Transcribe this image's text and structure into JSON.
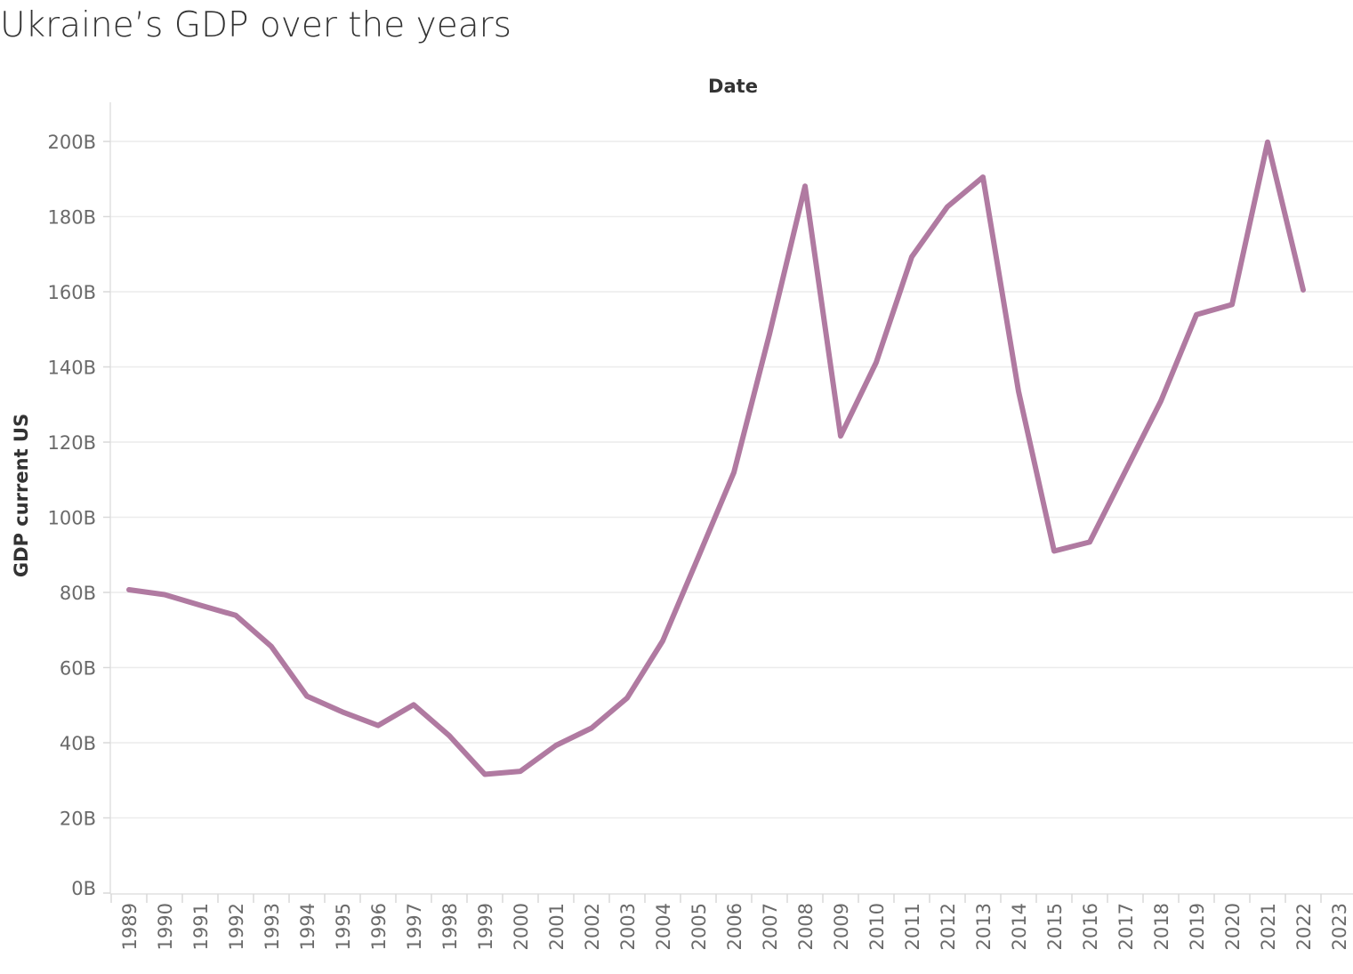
{
  "chart_data": {
    "type": "line",
    "title": "Ukraine’s GDP over the years",
    "xlabel": "Date",
    "ylabel": "GDP current US",
    "ylim": [
      0,
      210
    ],
    "y_ticks": [
      0,
      20,
      40,
      60,
      80,
      100,
      120,
      140,
      160,
      180,
      200
    ],
    "y_tick_suffix": "B",
    "x_categories": [
      "1989",
      "1990",
      "1991",
      "1992",
      "1993",
      "1994",
      "1995",
      "1996",
      "1997",
      "1998",
      "1999",
      "2000",
      "2001",
      "2002",
      "2003",
      "2004",
      "2005",
      "2006",
      "2007",
      "2008",
      "2009",
      "2010",
      "2011",
      "2012",
      "2013",
      "2014",
      "2015",
      "2016",
      "2017",
      "2018",
      "2019",
      "2020",
      "2021",
      "2022",
      "2023"
    ],
    "grid": true,
    "line_color": "#b07aa1",
    "series": [
      {
        "x": [
          "1989",
          "1990",
          "1991",
          "1992",
          "1993",
          "1994",
          "1995",
          "1996",
          "1997",
          "1998",
          "1999",
          "2000",
          "2001",
          "2002",
          "2003",
          "2004",
          "2005",
          "2006",
          "2007",
          "2008",
          "2009",
          "2010",
          "2011",
          "2012",
          "2013",
          "2014",
          "2015",
          "2016",
          "2017",
          "2018",
          "2019",
          "2020",
          "2021",
          "2022"
        ],
        "values": [
          80.7,
          79.4,
          76.6,
          73.9,
          65.6,
          52.4,
          48.2,
          44.6,
          50.1,
          41.9,
          31.6,
          32.4,
          39.3,
          43.9,
          51.9,
          67.1,
          89.4,
          111.9,
          148.7,
          188.1,
          121.6,
          141.2,
          169.3,
          182.6,
          190.5,
          133.5,
          91.0,
          93.4,
          112.2,
          130.9,
          153.9,
          156.6,
          199.8,
          160.5
        ]
      }
    ]
  }
}
